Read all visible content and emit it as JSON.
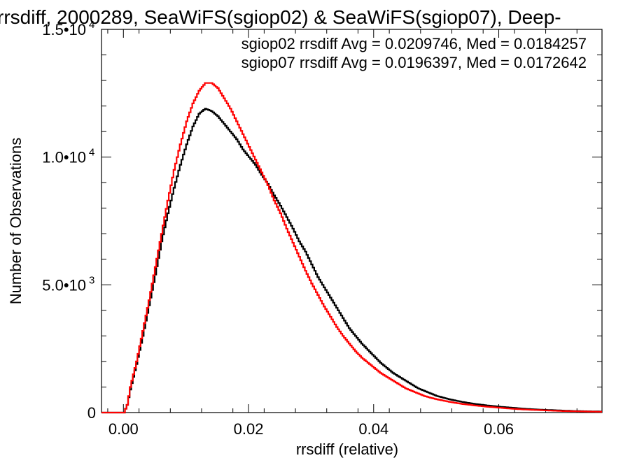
{
  "chart_data": {
    "type": "line",
    "title": "rrsdiff, 2000289, SeaWiFS(sgiop02) & SeaWiFS(sgiop07), Deep-",
    "xlabel": "rrsdiff (relative)",
    "ylabel": "Number of Observations",
    "xlim": [
      -0.0035,
      0.0765
    ],
    "ylim": [
      0,
      15000
    ],
    "x_ticks": [
      {
        "value": 0.0,
        "label": "0.00"
      },
      {
        "value": 0.02,
        "label": "0.02"
      },
      {
        "value": 0.04,
        "label": "0.04"
      },
      {
        "value": 0.06,
        "label": "0.06"
      }
    ],
    "y_ticks": [
      {
        "value": 0,
        "mant": "0",
        "exp": ""
      },
      {
        "value": 5000,
        "mant": "5.0•10",
        "exp": "3"
      },
      {
        "value": 10000,
        "mant": "1.0•10",
        "exp": "4"
      },
      {
        "value": 15000,
        "mant": "1.5•10",
        "exp": "4"
      }
    ],
    "legend_position": "top-right",
    "series": [
      {
        "name": "sgiop02",
        "legend": "sgiop02 rrsdiff Avg = 0.0209746, Med = 0.0184257",
        "color": "#000000",
        "points": [
          [
            -0.0035,
            0
          ],
          [
            0.0,
            0
          ],
          [
            0.0005,
            300
          ],
          [
            0.001,
            900
          ],
          [
            0.002,
            1900
          ],
          [
            0.003,
            3000
          ],
          [
            0.004,
            4200
          ],
          [
            0.005,
            5400
          ],
          [
            0.006,
            6700
          ],
          [
            0.007,
            7800
          ],
          [
            0.008,
            8800
          ],
          [
            0.009,
            9700
          ],
          [
            0.01,
            10500
          ],
          [
            0.011,
            11200
          ],
          [
            0.012,
            11700
          ],
          [
            0.013,
            11900
          ],
          [
            0.014,
            11800
          ],
          [
            0.015,
            11600
          ],
          [
            0.016,
            11300
          ],
          [
            0.017,
            11000
          ],
          [
            0.018,
            10700
          ],
          [
            0.019,
            10300
          ],
          [
            0.02,
            10000
          ],
          [
            0.021,
            9700
          ],
          [
            0.022,
            9300
          ],
          [
            0.023,
            8950
          ],
          [
            0.024,
            8500
          ],
          [
            0.025,
            8100
          ],
          [
            0.026,
            7650
          ],
          [
            0.027,
            7200
          ],
          [
            0.028,
            6700
          ],
          [
            0.029,
            6300
          ],
          [
            0.03,
            5800
          ],
          [
            0.031,
            5300
          ],
          [
            0.032,
            4900
          ],
          [
            0.033,
            4500
          ],
          [
            0.034,
            4100
          ],
          [
            0.035,
            3700
          ],
          [
            0.036,
            3300
          ],
          [
            0.037,
            3000
          ],
          [
            0.038,
            2700
          ],
          [
            0.039,
            2450
          ],
          [
            0.04,
            2200
          ],
          [
            0.041,
            1950
          ],
          [
            0.042,
            1750
          ],
          [
            0.043,
            1550
          ],
          [
            0.044,
            1400
          ],
          [
            0.045,
            1250
          ],
          [
            0.046,
            1100
          ],
          [
            0.047,
            950
          ],
          [
            0.048,
            850
          ],
          [
            0.049,
            750
          ],
          [
            0.05,
            650
          ],
          [
            0.052,
            520
          ],
          [
            0.054,
            420
          ],
          [
            0.056,
            340
          ],
          [
            0.058,
            280
          ],
          [
            0.06,
            230
          ],
          [
            0.062,
            190
          ],
          [
            0.064,
            150
          ],
          [
            0.066,
            120
          ],
          [
            0.068,
            100
          ],
          [
            0.07,
            80
          ],
          [
            0.072,
            60
          ],
          [
            0.074,
            50
          ],
          [
            0.0765,
            40
          ]
        ]
      },
      {
        "name": "sgiop07",
        "legend": "sgiop07 rrsdiff Avg = 0.0196397, Med = 0.0172642",
        "color": "#ff0000",
        "points": [
          [
            -0.0035,
            0
          ],
          [
            0.0,
            0
          ],
          [
            0.0005,
            300
          ],
          [
            0.001,
            1000
          ],
          [
            0.002,
            2000
          ],
          [
            0.003,
            3200
          ],
          [
            0.004,
            4400
          ],
          [
            0.005,
            5700
          ],
          [
            0.006,
            7000
          ],
          [
            0.007,
            8300
          ],
          [
            0.008,
            9500
          ],
          [
            0.009,
            10500
          ],
          [
            0.01,
            11400
          ],
          [
            0.011,
            12100
          ],
          [
            0.012,
            12600
          ],
          [
            0.013,
            12900
          ],
          [
            0.014,
            12900
          ],
          [
            0.015,
            12700
          ],
          [
            0.016,
            12300
          ],
          [
            0.017,
            11900
          ],
          [
            0.018,
            11400
          ],
          [
            0.019,
            10900
          ],
          [
            0.02,
            10400
          ],
          [
            0.021,
            9900
          ],
          [
            0.022,
            9400
          ],
          [
            0.023,
            8900
          ],
          [
            0.024,
            8300
          ],
          [
            0.025,
            7800
          ],
          [
            0.026,
            7200
          ],
          [
            0.027,
            6650
          ],
          [
            0.028,
            6100
          ],
          [
            0.029,
            5550
          ],
          [
            0.03,
            5050
          ],
          [
            0.031,
            4600
          ],
          [
            0.032,
            4150
          ],
          [
            0.033,
            3750
          ],
          [
            0.034,
            3350
          ],
          [
            0.035,
            3000
          ],
          [
            0.036,
            2700
          ],
          [
            0.037,
            2400
          ],
          [
            0.038,
            2150
          ],
          [
            0.039,
            1950
          ],
          [
            0.04,
            1750
          ],
          [
            0.041,
            1550
          ],
          [
            0.042,
            1400
          ],
          [
            0.043,
            1250
          ],
          [
            0.044,
            1100
          ],
          [
            0.045,
            950
          ],
          [
            0.046,
            850
          ],
          [
            0.047,
            750
          ],
          [
            0.048,
            650
          ],
          [
            0.049,
            580
          ],
          [
            0.05,
            520
          ],
          [
            0.052,
            420
          ],
          [
            0.054,
            340
          ],
          [
            0.056,
            280
          ],
          [
            0.058,
            230
          ],
          [
            0.06,
            190
          ],
          [
            0.062,
            150
          ],
          [
            0.064,
            120
          ],
          [
            0.066,
            100
          ],
          [
            0.068,
            80
          ],
          [
            0.07,
            60
          ],
          [
            0.072,
            50
          ],
          [
            0.074,
            40
          ],
          [
            0.0765,
            30
          ]
        ]
      }
    ]
  }
}
